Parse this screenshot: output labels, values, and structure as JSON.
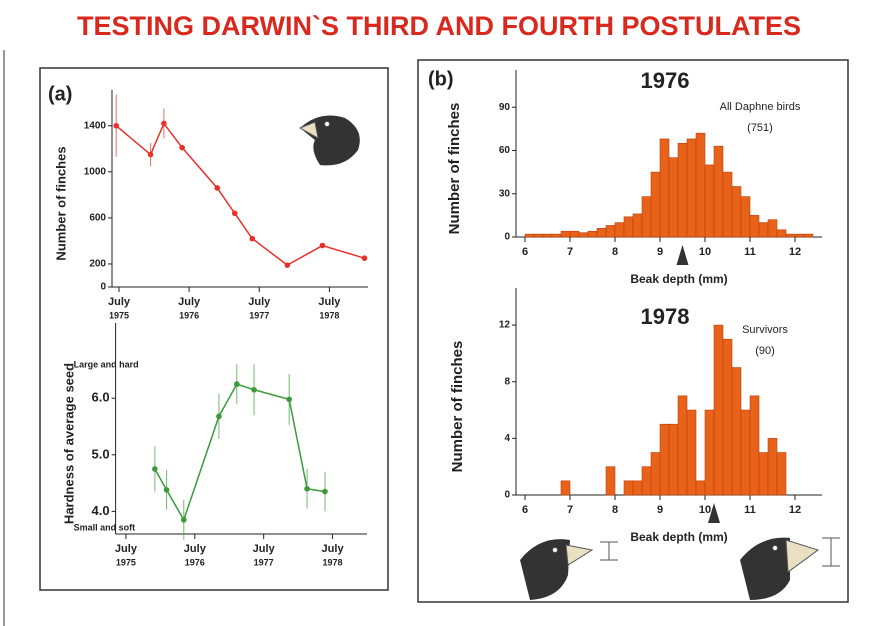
{
  "title": "TESTING DARWIN`S THIRD AND FOURTH POSTULATES",
  "panel_labels": [
    "(a)",
    "(b)"
  ],
  "chart_data": [
    {
      "type": "line",
      "y_label": "Number of finches",
      "color": "#e8302a",
      "x": [
        1975.46,
        1975.95,
        1976.14,
        1976.4,
        1976.9,
        1977.15,
        1977.4,
        1977.9,
        1978.4,
        1979.0
      ],
      "values": [
        1400,
        1150,
        1420,
        1210,
        860,
        640,
        420,
        190,
        360,
        250
      ],
      "errors": [
        270,
        100,
        130,
        null,
        null,
        null,
        null,
        null,
        null,
        null
      ],
      "xlim": [
        1975.4,
        1979.05
      ],
      "ylim": [
        0,
        1450
      ],
      "xticks": [
        {
          "value": 1975.5,
          "label": "July",
          "year": "1975"
        },
        {
          "value": 1976.5,
          "label": "July",
          "year": "1976"
        },
        {
          "value": 1977.5,
          "label": "July",
          "year": "1977"
        },
        {
          "value": 1978.5,
          "label": "July",
          "year": "1978"
        }
      ],
      "yticks": [
        0,
        200,
        600,
        1000,
        1400
      ]
    },
    {
      "type": "line",
      "y_label": "Hardness of average seed",
      "color": "#3a9a3a",
      "annotations": [
        "Large and hard",
        "Small and soft"
      ],
      "x": [
        1975.92,
        1976.09,
        1976.34,
        1976.85,
        1977.11,
        1977.36,
        1977.87,
        1978.13,
        1978.39
      ],
      "values": [
        4.75,
        4.38,
        3.85,
        5.68,
        6.25,
        6.15,
        5.98,
        4.4,
        4.35
      ],
      "errors": [
        0.4,
        0.35,
        0.35,
        0.4,
        0.35,
        0.45,
        0.45,
        0.35,
        0.35
      ],
      "xlim": [
        1975.35,
        1979.0
      ],
      "ylim": [
        3.6,
        6.8
      ],
      "xticks": [
        {
          "value": 1975.5,
          "label": "July",
          "year": "1975"
        },
        {
          "value": 1976.5,
          "label": "July",
          "year": "1976"
        },
        {
          "value": 1977.5,
          "label": "July",
          "year": "1977"
        },
        {
          "value": 1978.5,
          "label": "July",
          "year": "1978"
        }
      ],
      "yticks": [
        {
          "value": 4,
          "label": "4.0"
        },
        {
          "value": 5,
          "label": "5.0"
        },
        {
          "value": 6,
          "label": "6.0"
        }
      ]
    },
    {
      "type": "histogram",
      "title": "1976",
      "x_label": "Beak depth (mm)",
      "y_label": "Number of finches",
      "color": "#e8621a",
      "annotations": [
        "All Daphne birds",
        "(751)"
      ],
      "mean": 9.5,
      "bins": [
        6.0,
        6.2,
        6.4,
        6.6,
        6.8,
        7.0,
        7.2,
        7.4,
        7.6,
        7.8,
        8.0,
        8.2,
        8.4,
        8.6,
        8.8,
        9.0,
        9.2,
        9.4,
        9.6,
        9.8,
        10.0,
        10.2,
        10.4,
        10.6,
        10.8,
        11.0,
        11.2,
        11.4,
        11.6,
        11.8,
        12.0,
        12.2,
        12.4
      ],
      "values": [
        2,
        2,
        2,
        2,
        4,
        4,
        3,
        4,
        6,
        8,
        10,
        14,
        16,
        28,
        45,
        68,
        55,
        65,
        68,
        72,
        50,
        63,
        45,
        35,
        28,
        15,
        10,
        12,
        5,
        2,
        2,
        2
      ],
      "xlim": [
        5.8,
        12.6
      ],
      "ylim": [
        0,
        95
      ],
      "xticks": [
        6,
        7,
        8,
        9,
        10,
        11,
        12
      ],
      "yticks": [
        0,
        30,
        60,
        90
      ]
    },
    {
      "type": "histogram",
      "title": "1978",
      "x_label": "Beak depth (mm)",
      "y_label": "Number of finches",
      "color": "#e8621a",
      "annotations": [
        "Survivors",
        "(90)"
      ],
      "mean": 10.2,
      "bins": [
        6.0,
        6.2,
        6.4,
        6.6,
        6.8,
        7.0,
        7.2,
        7.4,
        7.6,
        7.8,
        8.0,
        8.2,
        8.4,
        8.6,
        8.8,
        9.0,
        9.2,
        9.4,
        9.6,
        9.8,
        10.0,
        10.2,
        10.4,
        10.6,
        10.8,
        11.0,
        11.2,
        11.4,
        11.6,
        11.8
      ],
      "values": [
        0,
        0,
        0,
        0,
        1,
        0,
        0,
        0,
        0,
        2,
        0,
        1,
        1,
        2,
        3,
        5,
        5,
        7,
        6,
        1,
        6,
        12,
        11,
        9,
        6,
        7,
        3,
        4,
        3
      ],
      "xlim": [
        5.8,
        12.6
      ],
      "ylim": [
        0,
        12.5
      ],
      "xticks": [
        6,
        7,
        8,
        9,
        10,
        11,
        12
      ],
      "yticks": [
        0,
        4,
        8,
        12
      ]
    }
  ]
}
